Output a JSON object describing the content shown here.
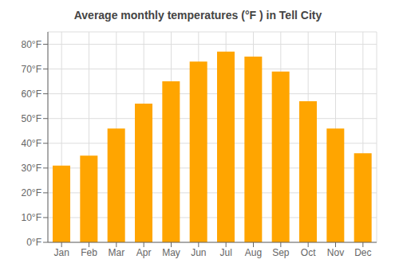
{
  "chart_data": {
    "type": "bar",
    "title": "Average monthly temperatures (°F ) in Tell City",
    "categories": [
      "Jan",
      "Feb",
      "Mar",
      "Apr",
      "May",
      "Jun",
      "Jul",
      "Aug",
      "Sep",
      "Oct",
      "Nov",
      "Dec"
    ],
    "values": [
      31,
      35,
      46,
      56,
      65,
      73,
      77,
      75,
      69,
      57,
      46,
      36
    ],
    "color": "#FFA500",
    "ylim": [
      0,
      85
    ],
    "yticks": [
      {
        "value": 0,
        "label": "0°F"
      },
      {
        "value": 10,
        "label": "10°F"
      },
      {
        "value": 20,
        "label": "20°F"
      },
      {
        "value": 30,
        "label": "30°F"
      },
      {
        "value": 40,
        "label": "40°F"
      },
      {
        "value": 50,
        "label": "50°F"
      },
      {
        "value": 60,
        "label": "60°F"
      },
      {
        "value": 70,
        "label": "70°F"
      },
      {
        "value": 80,
        "label": "80°F"
      }
    ],
    "grid": true
  }
}
